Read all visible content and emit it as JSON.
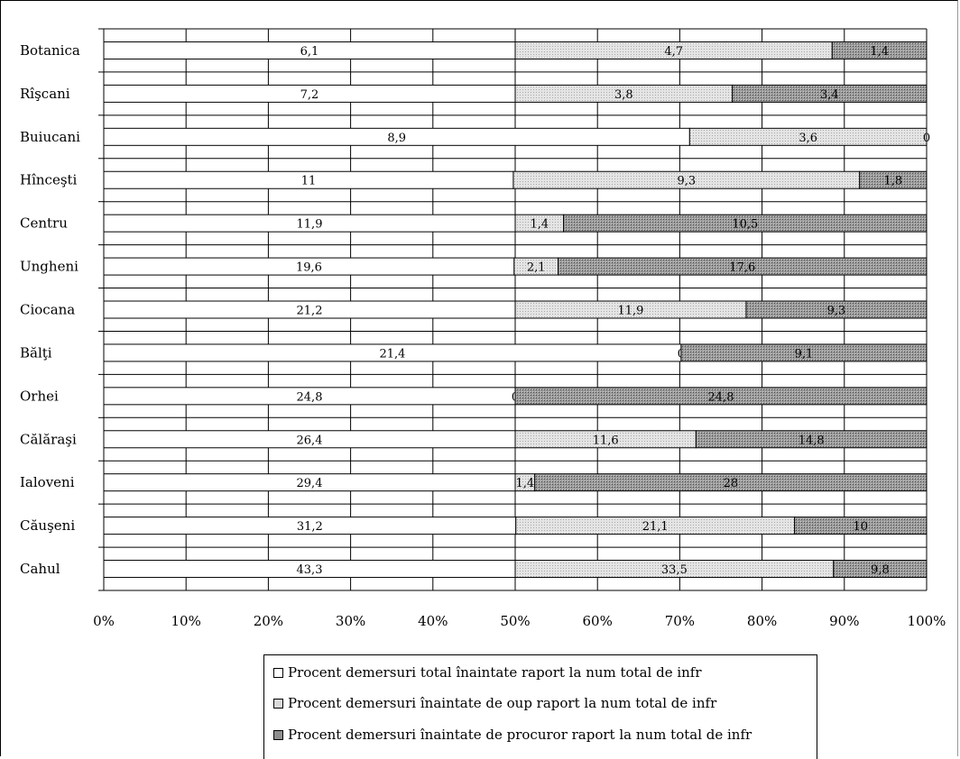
{
  "chart_data": {
    "type": "stacked-bar-horizontal-100",
    "title": "",
    "xlabel": "",
    "ylabel": "",
    "xlim": [
      0,
      100
    ],
    "x_ticks": [
      "0%",
      "10%",
      "20%",
      "30%",
      "40%",
      "50%",
      "60%",
      "70%",
      "80%",
      "90%",
      "100%"
    ],
    "grid": true,
    "legend_position": "bottom",
    "categories": [
      "Botanica",
      "Rîşcani",
      "Buiucani",
      "Hînceşti",
      "Centru",
      "Ungheni",
      "Ciocana",
      "Bălţi",
      "Orhei",
      "Călăraşi",
      "Ialoveni",
      "Căuşeni",
      "Cahul"
    ],
    "series": [
      {
        "name": "Procent demersuri total înaintate raport la num total de infr",
        "color": "#ffffff",
        "values": [
          6.1,
          7.2,
          8.9,
          11,
          11.9,
          19.6,
          21.2,
          21.4,
          24.8,
          26.4,
          29.4,
          31.2,
          43.3
        ],
        "labels": [
          "6,1",
          "7,2",
          "8,9",
          "11",
          "11,9",
          "19,6",
          "21,2",
          "21,4",
          "24,8",
          "26,4",
          "29,4",
          "31,2",
          "43,3"
        ]
      },
      {
        "name": "Procent demersuri  înaintate de oup raport la num total de infr",
        "color": "#d9d9d9",
        "values": [
          4.7,
          3.8,
          3.6,
          9.3,
          1.4,
          2.1,
          11.9,
          0,
          0,
          11.6,
          1.4,
          21.1,
          33.5
        ],
        "labels": [
          "4,7",
          "3,8",
          "3,6",
          "9,3",
          "1,4",
          "2,1",
          "11,9",
          "0",
          "0",
          "11,6",
          "1,4",
          "21,1",
          "33,5"
        ]
      },
      {
        "name": "Procent demersuri  înaintate de procuror raport la num total de infr",
        "color": "#9a9a9a",
        "values": [
          1.4,
          3.4,
          0,
          1.8,
          10.5,
          17.6,
          9.3,
          9.1,
          24.8,
          14.8,
          28,
          10,
          9.8
        ],
        "labels": [
          "1,4",
          "3,4",
          "0",
          "1,8",
          "10,5",
          "17,6",
          "9,3",
          "9,1",
          "24,8",
          "14,8",
          "28",
          "10",
          "9,8"
        ]
      }
    ]
  },
  "legend": {
    "marker_total": "□",
    "marker_oup": "▤",
    "marker_procuror": "▩"
  }
}
